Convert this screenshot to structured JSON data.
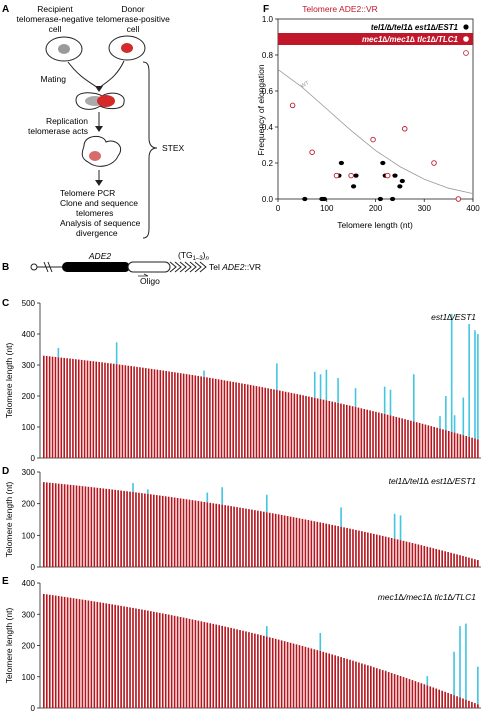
{
  "panelA": {
    "letter": "A",
    "recipient": [
      "Recipient",
      "telomerase-negative",
      "cell"
    ],
    "donor": [
      "Donor",
      "telomerase-positive",
      "cell"
    ],
    "mating": "Mating",
    "replication": [
      "Replication",
      "telomerase acts"
    ],
    "pcr": [
      "Telomere PCR",
      "Clone and sequence",
      "telomeres",
      "Analysis of sequence",
      "divergence"
    ],
    "stex": "STEX"
  },
  "panelB": {
    "letter": "B",
    "gene": "ADE2",
    "repeat_main": "(TG",
    "repeat_sub": "1–3",
    "repeat_close": ")",
    "repeat_n": "n",
    "oligo": "Oligo",
    "tel_prefix": "Tel ",
    "tel_gene": "ADE2",
    "tel_suffix": "::VR"
  },
  "panelF": {
    "letter": "F",
    "title": "Telomere ADE2::VR",
    "wt_label": "WT",
    "legend": [
      {
        "label": "tel1/∆/tel1∆ est1∆/EST1",
        "marker": "filled"
      },
      {
        "label": "mec1∆/mec1∆ tlc1∆/TLC1",
        "marker": "open"
      }
    ],
    "colors": {
      "filled": "#000000",
      "open": "#c0182a",
      "highlight": "#c0182a"
    }
  },
  "chart_data": [
    {
      "type": "scatter",
      "panel": "F",
      "title": "Telomere ADE2::VR",
      "xlabel": "Telomere length (nt)",
      "ylabel": "Frequency of elongation",
      "xlim": [
        0,
        400
      ],
      "ylim": [
        0,
        1.0
      ],
      "xticks": [
        0,
        100,
        200,
        300,
        400
      ],
      "yticks": [
        0.0,
        0.2,
        0.4,
        0.6,
        0.8,
        1.0
      ],
      "xtick_labels": [
        "0",
        "100",
        "200",
        "300",
        "400"
      ],
      "ytick_labels": [
        "0.0",
        "0.2",
        "0.4",
        "0.6",
        "0.8",
        "1.0"
      ],
      "series": [
        {
          "name": "tel1/∆/tel1∆ est1∆/EST1",
          "marker": "filled",
          "x": [
            55,
            90,
            95,
            125,
            130,
            155,
            160,
            210,
            215,
            220,
            235,
            240,
            250,
            255
          ],
          "y": [
            0.0,
            0.0,
            0.0,
            0.13,
            0.2,
            0.07,
            0.13,
            0.0,
            0.2,
            0.13,
            0.0,
            0.13,
            0.07,
            0.1
          ]
        },
        {
          "name": "mec1∆/mec1∆ tlc1∆/TLC1",
          "marker": "open",
          "x": [
            30,
            70,
            120,
            150,
            195,
            225,
            260,
            320,
            370
          ],
          "y": [
            0.52,
            0.26,
            0.13,
            0.13,
            0.33,
            0.13,
            0.39,
            0.2,
            0.0
          ]
        },
        {
          "name": "WT",
          "marker": "curve",
          "x": [
            0,
            50,
            100,
            150,
            200,
            250,
            300,
            350,
            400
          ],
          "y": [
            0.72,
            0.62,
            0.5,
            0.38,
            0.27,
            0.18,
            0.11,
            0.06,
            0.03
          ]
        }
      ]
    },
    {
      "type": "bar",
      "panel": "C",
      "label": "est1∆/EST1",
      "ylabel": "Telomere length (nt)",
      "ylim": [
        0,
        500
      ],
      "yticks": [
        0,
        100,
        200,
        300,
        400,
        500
      ],
      "n_bars": 150,
      "start_value": 330,
      "end_value": 60,
      "extension_bars": [
        [
          5,
          355
        ],
        [
          25,
          373
        ],
        [
          55,
          282
        ],
        [
          80,
          305
        ],
        [
          93,
          278
        ],
        [
          95,
          270
        ],
        [
          97,
          285
        ],
        [
          101,
          258
        ],
        [
          107,
          225
        ],
        [
          117,
          230
        ],
        [
          119,
          220
        ],
        [
          127,
          270
        ],
        [
          136,
          135
        ],
        [
          138,
          200
        ],
        [
          140,
          465
        ],
        [
          141,
          138
        ],
        [
          144,
          195
        ],
        [
          146,
          432
        ],
        [
          148,
          412
        ],
        [
          149,
          400
        ]
      ]
    },
    {
      "type": "bar",
      "panel": "D",
      "label": "tel1∆/tel1∆ est1∆/EST1",
      "ylabel": "Telomere length (nt)",
      "ylim": [
        0,
        300
      ],
      "yticks": [
        0,
        100,
        200,
        300
      ],
      "n_bars": 147,
      "start_value": 268,
      "end_value": 22,
      "extension_bars": [
        [
          10,
          252
        ],
        [
          30,
          265
        ],
        [
          35,
          245
        ],
        [
          55,
          235
        ],
        [
          60,
          252
        ],
        [
          75,
          228
        ],
        [
          100,
          188
        ],
        [
          118,
          168
        ],
        [
          120,
          163
        ]
      ]
    },
    {
      "type": "bar",
      "panel": "E",
      "label": "mec1∆/mec1∆ tlc1∆/TLC1",
      "ylabel": "Telomere length (nt)",
      "ylim": [
        0,
        400
      ],
      "yticks": [
        0,
        100,
        200,
        300,
        400
      ],
      "n_bars": 147,
      "start_value": 365,
      "end_value": 12,
      "extension_bars": [
        [
          10,
          318
        ],
        [
          13,
          318
        ],
        [
          18,
          290
        ],
        [
          20,
          318
        ],
        [
          22,
          300
        ],
        [
          30,
          310
        ],
        [
          39,
          265
        ],
        [
          48,
          272
        ],
        [
          52,
          228
        ],
        [
          60,
          210
        ],
        [
          75,
          262
        ],
        [
          93,
          240
        ],
        [
          97,
          168
        ],
        [
          104,
          132
        ],
        [
          107,
          102
        ],
        [
          110,
          135
        ],
        [
          115,
          120
        ],
        [
          126,
          75
        ],
        [
          129,
          102
        ],
        [
          138,
          180
        ],
        [
          140,
          262
        ],
        [
          142,
          270
        ],
        [
          146,
          132
        ]
      ]
    }
  ]
}
